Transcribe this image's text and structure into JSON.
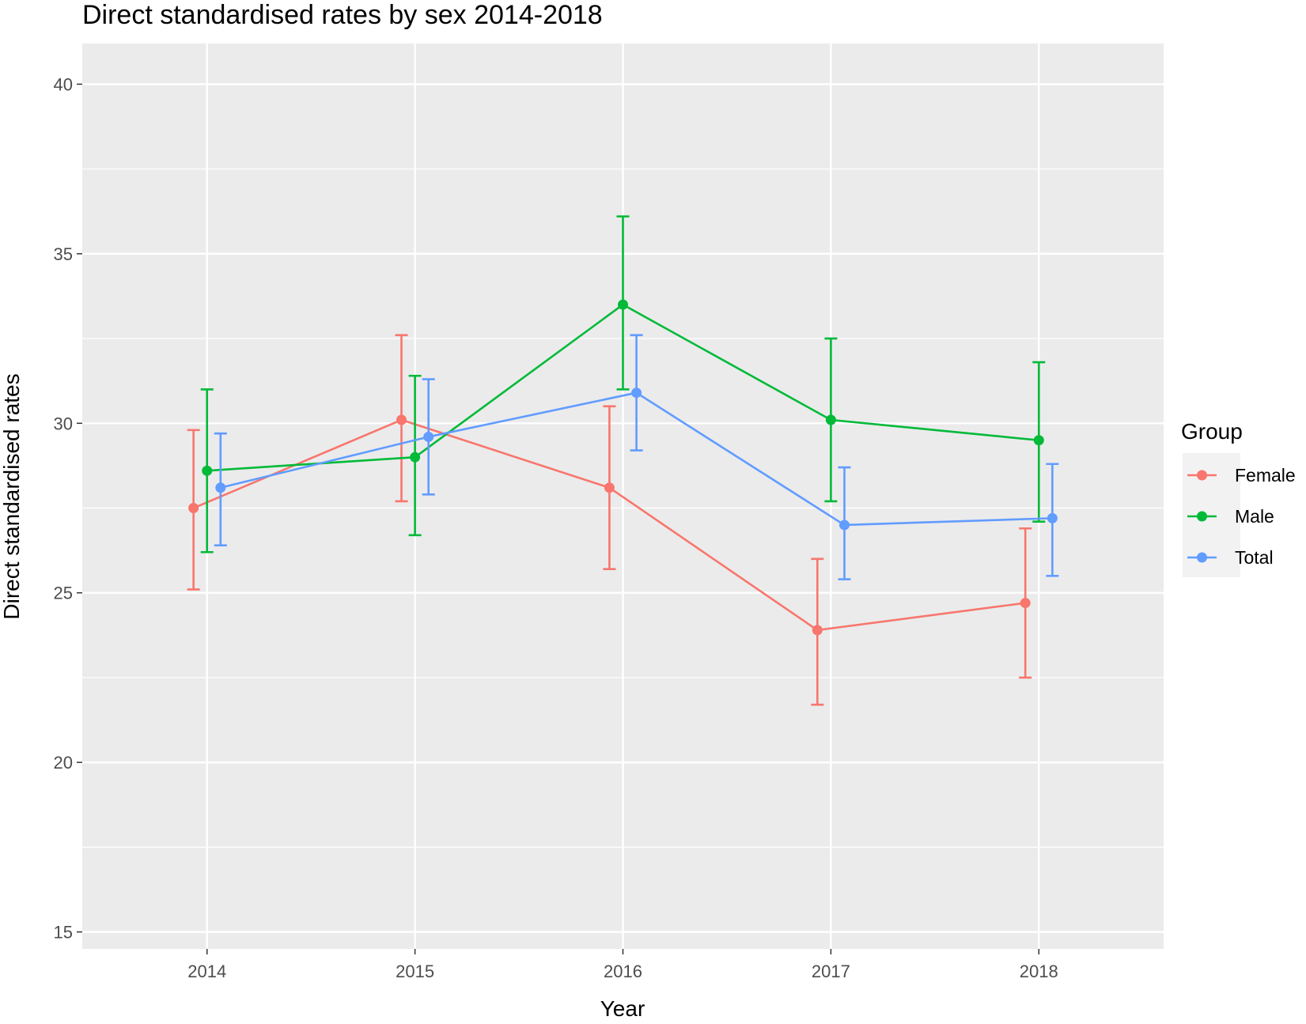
{
  "chart_data": {
    "type": "line",
    "title": "Direct standardised rates by sex 2014-2018",
    "xlabel": "Year",
    "ylabel": "Direct standardised rates",
    "x": [
      "2014",
      "2015",
      "2016",
      "2017",
      "2018"
    ],
    "xlim": [
      2013.4,
      2018.6
    ],
    "ylim": [
      14.5,
      41.2
    ],
    "yticks": [
      15,
      20,
      25,
      30,
      35,
      40
    ],
    "grid": true,
    "legend": {
      "title": "Group",
      "position": "right"
    },
    "error_bars": true,
    "series": [
      {
        "name": "Female",
        "color": "#F8766D",
        "values": [
          27.5,
          30.1,
          28.1,
          23.9,
          24.7
        ],
        "lower": [
          25.1,
          27.7,
          25.7,
          21.7,
          22.5
        ],
        "upper": [
          29.8,
          32.6,
          30.5,
          26.0,
          26.9
        ]
      },
      {
        "name": "Male",
        "color": "#00BA38",
        "values": [
          28.6,
          29.0,
          33.5,
          30.1,
          29.5
        ],
        "lower": [
          26.2,
          26.7,
          31.0,
          27.7,
          27.1
        ],
        "upper": [
          31.0,
          31.4,
          36.1,
          32.5,
          31.8
        ]
      },
      {
        "name": "Total",
        "color": "#619CFF",
        "values": [
          28.1,
          29.6,
          30.9,
          27.0,
          27.2
        ],
        "lower": [
          26.4,
          27.9,
          29.2,
          25.4,
          25.5
        ],
        "upper": [
          29.7,
          31.3,
          32.6,
          28.7,
          28.8
        ]
      }
    ]
  }
}
